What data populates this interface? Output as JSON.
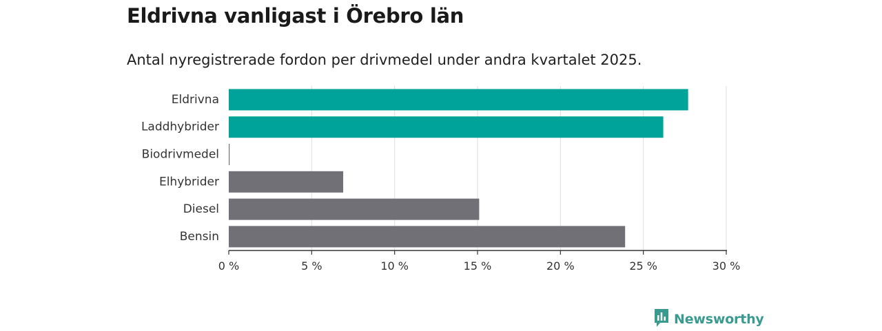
{
  "title": "Eldrivna vanligast i Örebro län",
  "subtitle": "Antal nyregistrerade fordon per drivmedel under andra kvartalet 2025.",
  "brand": {
    "name": "Newsworthy",
    "color": "#3a9a8f",
    "icon": "newsworthy-logo-icon"
  },
  "chart_data": {
    "type": "bar",
    "orientation": "horizontal",
    "categories": [
      "Eldrivna",
      "Laddhybrider",
      "Biodrivmedel",
      "Elhybrider",
      "Diesel",
      "Bensin"
    ],
    "values": [
      27.7,
      26.2,
      0.05,
      6.9,
      15.1,
      23.9
    ],
    "colors": [
      "#00a39a",
      "#00a39a",
      "#707076",
      "#707076",
      "#707076",
      "#707076"
    ],
    "xlim": [
      0,
      30
    ],
    "x_ticks": [
      0,
      5,
      10,
      15,
      20,
      25,
      30
    ],
    "x_tick_labels": [
      "0 %",
      "5 %",
      "10 %",
      "15 %",
      "20 %",
      "25 %",
      "30 %"
    ],
    "grid": true,
    "xlabel": "",
    "ylabel": ""
  }
}
